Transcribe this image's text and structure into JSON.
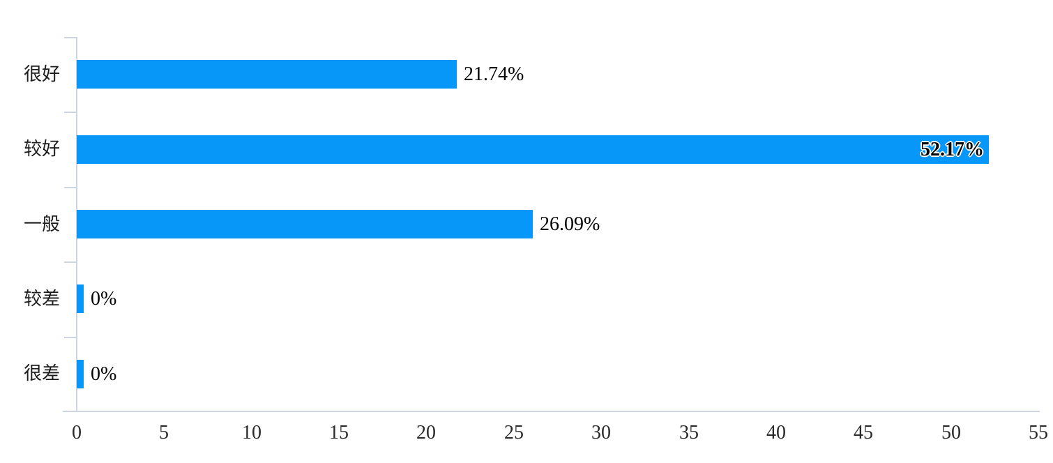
{
  "page": {
    "background_color": "#ffffff"
  },
  "chart_data": {
    "type": "bar",
    "orientation": "horizontal",
    "categories": [
      "很好",
      "较好",
      "一般",
      "较差",
      "很差"
    ],
    "values": [
      21.74,
      52.17,
      26.09,
      0,
      0
    ],
    "value_labels": [
      "21.74%",
      "52.17%",
      "26.09%",
      "0%",
      "0%"
    ],
    "label_inside": [
      false,
      true,
      false,
      false,
      false
    ],
    "xlim": [
      0,
      55
    ],
    "x_ticks": [
      0,
      5,
      10,
      15,
      20,
      25,
      30,
      35,
      40,
      45,
      50,
      55
    ],
    "grid": false,
    "legend": "none",
    "bar_color": "#0697F8",
    "axis_color": "#CDD5E3",
    "label_color": "#000000",
    "category_label_color": "#1c1c1c"
  }
}
